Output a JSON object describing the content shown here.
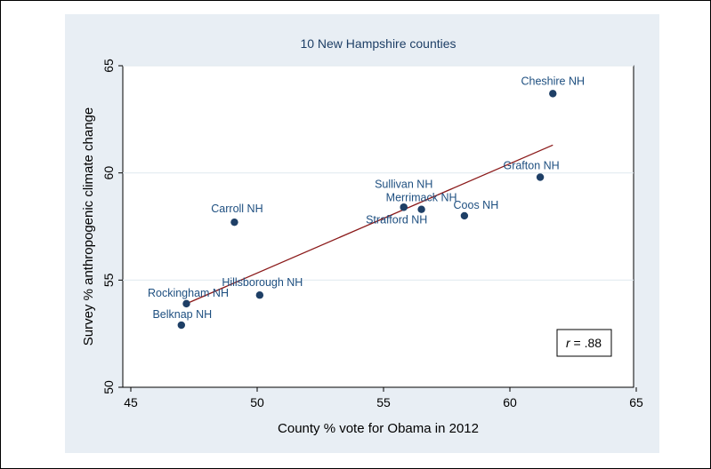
{
  "chart_data": {
    "type": "scatter",
    "title": "10 New Hampshire counties",
    "xlabel": "County % vote for Obama in 2012",
    "ylabel": "Survey % anthropogenic climate change",
    "xlim": [
      45,
      65
    ],
    "ylim": [
      50,
      65
    ],
    "xticks": [
      45,
      50,
      55,
      60,
      65
    ],
    "yticks": [
      50,
      55,
      60,
      65
    ],
    "grid": true,
    "points": [
      {
        "label": "Cheshire NH",
        "x": 61.7,
        "y": 63.7
      },
      {
        "label": "Grafton NH",
        "x": 61.2,
        "y": 59.8
      },
      {
        "label": "Sullivan NH",
        "x": 55.8,
        "y": 58.4
      },
      {
        "label": "Merrimack NH",
        "x": 56.5,
        "y": 58.3
      },
      {
        "label": "Coos NH",
        "x": 58.2,
        "y": 58.0
      },
      {
        "label": "Strafford NH",
        "x": 55.8,
        "y": 58.4
      },
      {
        "label": "Carroll NH",
        "x": 49.1,
        "y": 57.7
      },
      {
        "label": "Hillsborough NH",
        "x": 50.1,
        "y": 54.3
      },
      {
        "label": "Rockingham NH",
        "x": 47.2,
        "y": 53.9
      },
      {
        "label": "Belknap NH",
        "x": 47.0,
        "y": 52.9
      }
    ],
    "fit_line": {
      "x": [
        47.2,
        61.7
      ],
      "y": [
        53.9,
        61.3
      ]
    },
    "annotation": {
      "r_symbol": "r",
      "r_value": " = .88"
    },
    "colors": {
      "marker": "#1e3f66",
      "fit_line": "#8b1a1a",
      "plot_region_background": "#e8eef4",
      "plot_area_background": "#ffffff",
      "label_text": "#1e4f80"
    }
  }
}
